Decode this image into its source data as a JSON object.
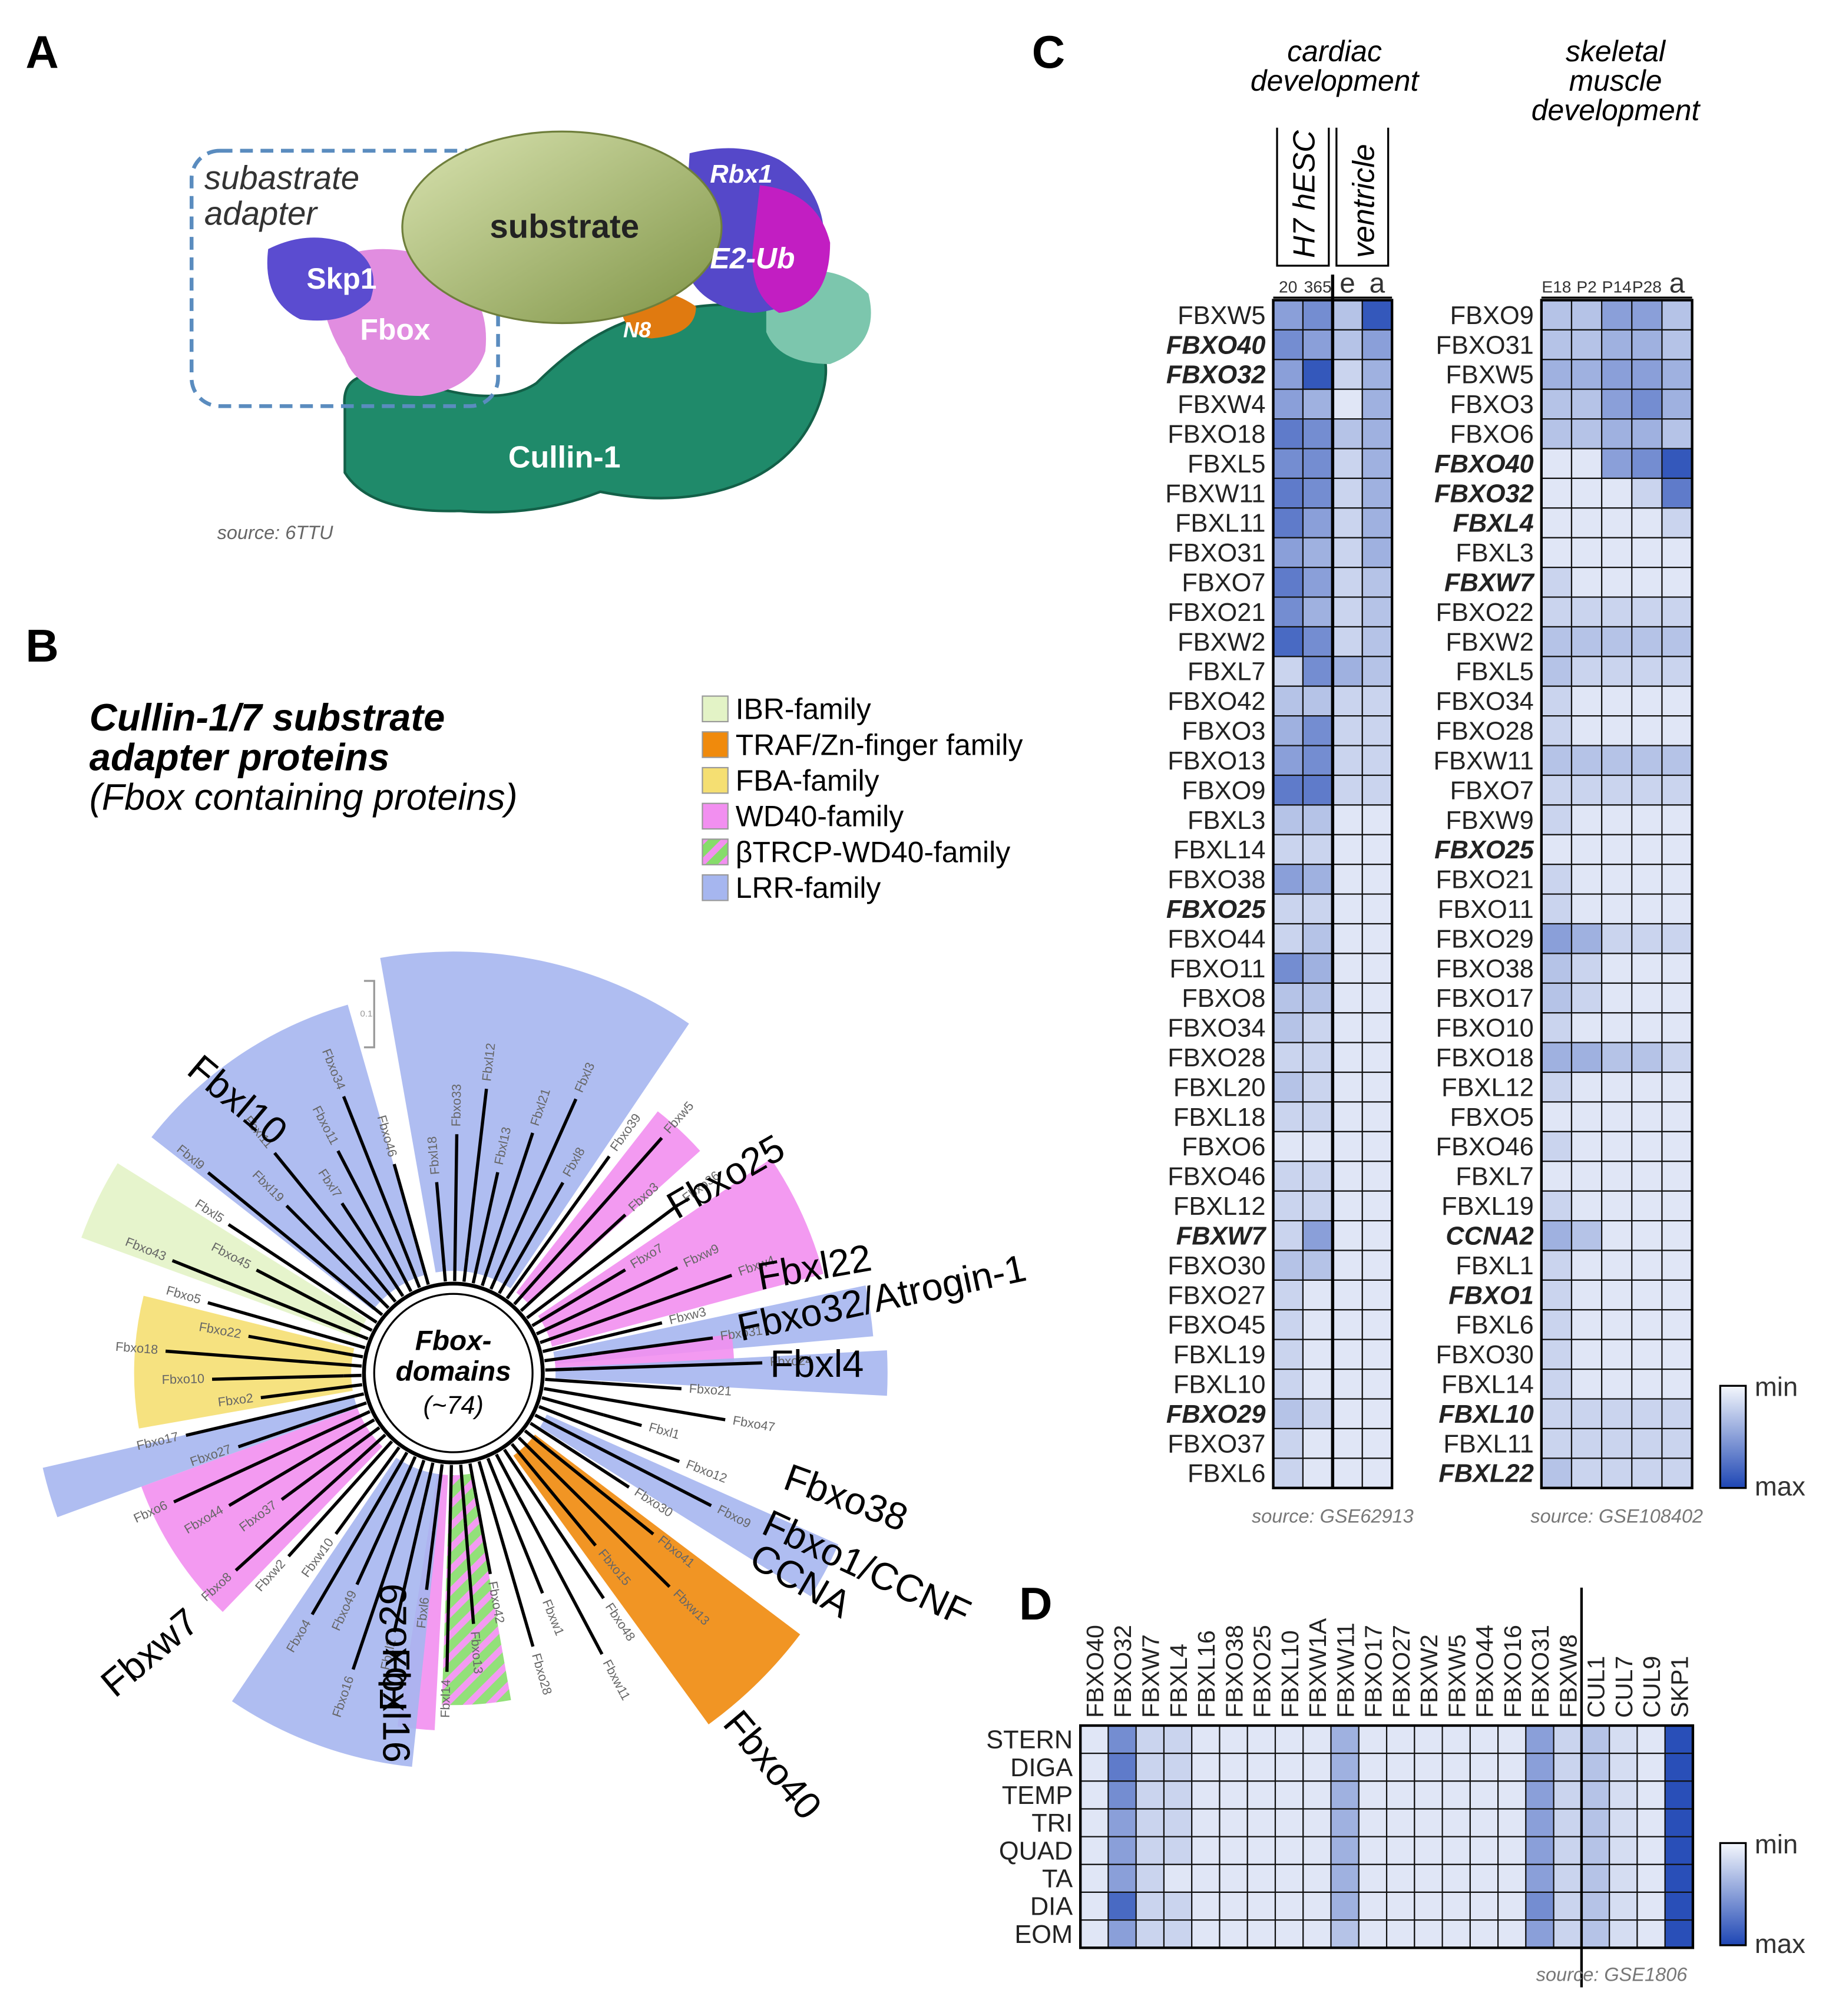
{
  "labels": [
    "A",
    "B",
    "C",
    "D"
  ],
  "panel_a": {
    "adapter_label": [
      "subastrate",
      "adapter"
    ],
    "substrate": "substrate",
    "rbx1": "Rbx1",
    "e2": "E2-Ub",
    "skp1": "Skp1",
    "fbox": "Fbox",
    "n8": "N8",
    "cullin": "Cullin-1",
    "source": "source: 6TTU"
  },
  "tree": {
    "title": [
      "Cullin-1/7 substrate",
      "adapter proteins"
    ],
    "subtitle": "(Fbox containing proteins)",
    "legend": [
      {
        "name": "IBR-family",
        "color": "#e3f3c6"
      },
      {
        "name": "TRAF/Zn-finger family",
        "color": "#f08a0c"
      },
      {
        "name": "FBA-family",
        "color": "#f5df72"
      },
      {
        "name": "WD40-family",
        "color": "#f28ff0"
      },
      {
        "name": "βTRCP-WD40-family",
        "color": "#86dc6a"
      },
      {
        "name": "LRR-family",
        "color": "#a6b6ef"
      }
    ],
    "center": [
      "Fbox-",
      "domains",
      "(~74)"
    ],
    "scale": "0.1",
    "leaves": [
      "Fbxl18",
      "Fbxo33",
      "Fbxl12",
      "Fbxl13",
      "Fbxl21",
      "Fbxl3",
      "Fbxl8",
      "Fbxo39",
      "Fbxw5",
      "Fbxo3",
      "Fbxo36",
      "Fbxo7",
      "Fbxw9",
      "Fbxw4",
      "Fbxw3",
      "Fbxo31",
      "Fbxo24",
      "Fbxo21",
      "Fbxo47",
      "Fbxl1",
      "Fbxo12",
      "Fbxo9",
      "Fbxo30",
      "Fbxo41",
      "Fbxw13",
      "Fbxo15",
      "Fbxo48",
      "Fbxw11",
      "Fbxw1",
      "Fbxo28",
      "Fbxo42",
      "Fbxo13",
      "Fbxl14",
      "Fbxl6",
      "Fbxl2",
      "Fbxo16",
      "Fbxo49",
      "Fbxo4",
      "Fbxw10",
      "Fbxw2",
      "Fbxo8",
      "Fbxo37",
      "Fbxo44",
      "Fbxo6",
      "Fbxo27",
      "Fbxo17",
      "Fbxo2",
      "Fbxo10",
      "Fbxo18",
      "Fbxo22",
      "Fbxo5",
      "Fbxo43",
      "Fbxo45",
      "Fbxl5",
      "Fbxl9",
      "Fbxl19",
      "Fbxl11",
      "Fbxl7",
      "Fbxo11",
      "Fbxo34",
      "Fbxo46"
    ],
    "highlights": [
      "Fbxl10",
      "Fbxo25",
      "Fbxl22",
      "Fbxo32/Atrogin-1",
      "Fbxl4",
      "Fbxo38",
      "Fbxo1/CCNF",
      "CCNA",
      "Fbxo40",
      "Fbxl16",
      "Fbxo29",
      "Fbxw7"
    ]
  },
  "chart_data": [
    {
      "type": "heatmap",
      "header": [
        "cardiac",
        "development"
      ],
      "column_groups": [
        {
          "label": "H7 hESC",
          "span": 2
        },
        {
          "label": "ventricle",
          "span": 2
        }
      ],
      "columns": [
        "20",
        "365",
        "e",
        "a"
      ],
      "rows": [
        "FBXW5",
        "FBXO40",
        "FBXO32",
        "FBXW4",
        "FBXO18",
        "FBXL5",
        "FBXW11",
        "FBXL11",
        "FBXO31",
        "FBXO7",
        "FBXO21",
        "FBXW2",
        "FBXL7",
        "FBXO42",
        "FBXO3",
        "FBXO13",
        "FBXO9",
        "FBXL3",
        "FBXL14",
        "FBXO38",
        "FBXO25",
        "FBXO44",
        "FBXO11",
        "FBXO8",
        "FBXO34",
        "FBXO28",
        "FBXL20",
        "FBXL18",
        "FBXO6",
        "FBXO46",
        "FBXL12",
        "FBXW7",
        "FBXO30",
        "FBXO27",
        "FBXO45",
        "FBXL19",
        "FBXL10",
        "FBXO29",
        "FBXO37",
        "FBXL6"
      ],
      "bold": [
        1,
        2,
        20,
        31,
        37
      ],
      "values": [
        [
          0.5,
          0.6,
          0.3,
          0.9
        ],
        [
          0.6,
          0.5,
          0.3,
          0.5
        ],
        [
          0.5,
          0.9,
          0.2,
          0.4
        ],
        [
          0.5,
          0.4,
          0.1,
          0.4
        ],
        [
          0.7,
          0.6,
          0.3,
          0.4
        ],
        [
          0.6,
          0.6,
          0.2,
          0.4
        ],
        [
          0.7,
          0.6,
          0.2,
          0.4
        ],
        [
          0.7,
          0.5,
          0.2,
          0.4
        ],
        [
          0.5,
          0.4,
          0.2,
          0.4
        ],
        [
          0.7,
          0.5,
          0.2,
          0.3
        ],
        [
          0.6,
          0.4,
          0.2,
          0.3
        ],
        [
          0.8,
          0.6,
          0.2,
          0.3
        ],
        [
          0.2,
          0.6,
          0.4,
          0.3
        ],
        [
          0.3,
          0.3,
          0.2,
          0.2
        ],
        [
          0.4,
          0.6,
          0.2,
          0.2
        ],
        [
          0.5,
          0.6,
          0.2,
          0.2
        ],
        [
          0.7,
          0.7,
          0.2,
          0.2
        ],
        [
          0.3,
          0.3,
          0.1,
          0.1
        ],
        [
          0.2,
          0.2,
          0.1,
          0.1
        ],
        [
          0.5,
          0.4,
          0.1,
          0.1
        ],
        [
          0.2,
          0.2,
          0.1,
          0.1
        ],
        [
          0.2,
          0.3,
          0.1,
          0.1
        ],
        [
          0.6,
          0.4,
          0.1,
          0.1
        ],
        [
          0.3,
          0.3,
          0.1,
          0.1
        ],
        [
          0.3,
          0.2,
          0.1,
          0.1
        ],
        [
          0.2,
          0.2,
          0.1,
          0.1
        ],
        [
          0.3,
          0.2,
          0.1,
          0.1
        ],
        [
          0.2,
          0.2,
          0.1,
          0.1
        ],
        [
          0.1,
          0.1,
          0.1,
          0.1
        ],
        [
          0.2,
          0.2,
          0.1,
          0.1
        ],
        [
          0.2,
          0.2,
          0.1,
          0.1
        ],
        [
          0.2,
          0.5,
          0.1,
          0.1
        ],
        [
          0.3,
          0.3,
          0.1,
          0.1
        ],
        [
          0.2,
          0.1,
          0.1,
          0.1
        ],
        [
          0.2,
          0.1,
          0.1,
          0.1
        ],
        [
          0.2,
          0.1,
          0.1,
          0.1
        ],
        [
          0.2,
          0.1,
          0.1,
          0.1
        ],
        [
          0.3,
          0.2,
          0.1,
          0.1
        ],
        [
          0.2,
          0.1,
          0.1,
          0.1
        ],
        [
          0.2,
          0.1,
          0.1,
          0.1
        ]
      ],
      "source": "source: GSE62913"
    },
    {
      "type": "heatmap",
      "header": [
        "skeletal",
        "muscle",
        "development"
      ],
      "columns": [
        "E18",
        "P2",
        "P14",
        "P28",
        "a"
      ],
      "rows": [
        "FBXO9",
        "FBXO31",
        "FBXW5",
        "FBXO3",
        "FBXO6",
        "FBXO40",
        "FBXO32",
        "FBXL4",
        "FBXL3",
        "FBXW7",
        "FBXO22",
        "FBXW2",
        "FBXL5",
        "FBXO34",
        "FBXO28",
        "FBXW11",
        "FBXO7",
        "FBXW9",
        "FBXO25",
        "FBXO21",
        "FBXO11",
        "FBXO29",
        "FBXO38",
        "FBXO17",
        "FBXO10",
        "FBXO18",
        "FBXL12",
        "FBXO5",
        "FBXO46",
        "FBXL7",
        "FBXL19",
        "CCNA2",
        "FBXL1",
        "FBXO1",
        "FBXL6",
        "FBXO30",
        "FBXL14",
        "FBXL10",
        "FBXL11",
        "FBXL22"
      ],
      "bold": [
        5,
        6,
        7,
        9,
        18,
        31,
        33,
        37,
        39
      ],
      "values": [
        [
          0.3,
          0.3,
          0.5,
          0.5,
          0.3
        ],
        [
          0.3,
          0.3,
          0.4,
          0.4,
          0.3
        ],
        [
          0.4,
          0.4,
          0.5,
          0.5,
          0.4
        ],
        [
          0.3,
          0.3,
          0.5,
          0.6,
          0.4
        ],
        [
          0.3,
          0.3,
          0.4,
          0.4,
          0.3
        ],
        [
          0.1,
          0.1,
          0.5,
          0.6,
          0.9
        ],
        [
          0.1,
          0.1,
          0.1,
          0.2,
          0.7
        ],
        [
          0.1,
          0.1,
          0.1,
          0.1,
          0.2
        ],
        [
          0.1,
          0.1,
          0.1,
          0.1,
          0.1
        ],
        [
          0.2,
          0.1,
          0.1,
          0.1,
          0.1
        ],
        [
          0.2,
          0.2,
          0.2,
          0.2,
          0.2
        ],
        [
          0.3,
          0.3,
          0.3,
          0.3,
          0.3
        ],
        [
          0.3,
          0.2,
          0.2,
          0.2,
          0.2
        ],
        [
          0.2,
          0.1,
          0.1,
          0.1,
          0.1
        ],
        [
          0.2,
          0.1,
          0.1,
          0.1,
          0.1
        ],
        [
          0.3,
          0.3,
          0.3,
          0.3,
          0.3
        ],
        [
          0.2,
          0.2,
          0.2,
          0.2,
          0.2
        ],
        [
          0.2,
          0.1,
          0.1,
          0.1,
          0.1
        ],
        [
          0.1,
          0.1,
          0.1,
          0.1,
          0.1
        ],
        [
          0.2,
          0.1,
          0.1,
          0.1,
          0.1
        ],
        [
          0.2,
          0.1,
          0.1,
          0.1,
          0.1
        ],
        [
          0.5,
          0.4,
          0.2,
          0.2,
          0.2
        ],
        [
          0.3,
          0.2,
          0.1,
          0.1,
          0.1
        ],
        [
          0.3,
          0.2,
          0.1,
          0.1,
          0.1
        ],
        [
          0.2,
          0.1,
          0.1,
          0.1,
          0.1
        ],
        [
          0.4,
          0.4,
          0.3,
          0.3,
          0.2
        ],
        [
          0.2,
          0.1,
          0.1,
          0.1,
          0.1
        ],
        [
          0.1,
          0.1,
          0.1,
          0.1,
          0.1
        ],
        [
          0.2,
          0.1,
          0.1,
          0.1,
          0.1
        ],
        [
          0.1,
          0.1,
          0.1,
          0.1,
          0.1
        ],
        [
          0.2,
          0.1,
          0.1,
          0.1,
          0.1
        ],
        [
          0.4,
          0.3,
          0.1,
          0.1,
          0.1
        ],
        [
          0.2,
          0.1,
          0.1,
          0.1,
          0.1
        ],
        [
          0.2,
          0.1,
          0.1,
          0.1,
          0.1
        ],
        [
          0.2,
          0.1,
          0.1,
          0.1,
          0.1
        ],
        [
          0.2,
          0.1,
          0.1,
          0.1,
          0.1
        ],
        [
          0.2,
          0.1,
          0.1,
          0.1,
          0.1
        ],
        [
          0.2,
          0.2,
          0.2,
          0.2,
          0.2
        ],
        [
          0.2,
          0.2,
          0.2,
          0.2,
          0.2
        ],
        [
          0.3,
          0.2,
          0.2,
          0.2,
          0.2
        ]
      ],
      "colorbar": [
        "min",
        "max"
      ],
      "source": "source: GSE108402"
    },
    {
      "type": "heatmap",
      "columns": [
        "FBXO40",
        "FBXO32",
        "FBXW7",
        "FBXL4",
        "FBXL16",
        "FBXO38",
        "FBXO25",
        "FBXL10",
        "FBXW1A",
        "FBXW11",
        "FBXO17",
        "FBXO27",
        "FBXW2",
        "FBXW5",
        "FBXO44",
        "FBXO16",
        "FBXO31",
        "FBXW8",
        "CUL1",
        "CUL7",
        "CUL9",
        "SKP1"
      ],
      "divider_after": 18,
      "rows": [
        "STERN",
        "DIGA",
        "TEMP",
        "TRI",
        "QUAD",
        "TA",
        "DIA",
        "EOM"
      ],
      "values": [
        [
          0.1,
          0.6,
          0.2,
          0.2,
          0.1,
          0.1,
          0.1,
          0.1,
          0.1,
          0.4,
          0.1,
          0.1,
          0.1,
          0.1,
          0.1,
          0.1,
          0.5,
          0.2,
          0.3,
          0.15,
          0.1,
          0.95
        ],
        [
          0.1,
          0.7,
          0.2,
          0.2,
          0.1,
          0.1,
          0.1,
          0.1,
          0.1,
          0.4,
          0.1,
          0.1,
          0.1,
          0.1,
          0.1,
          0.1,
          0.5,
          0.2,
          0.3,
          0.15,
          0.1,
          0.95
        ],
        [
          0.1,
          0.6,
          0.2,
          0.2,
          0.1,
          0.1,
          0.1,
          0.1,
          0.1,
          0.4,
          0.1,
          0.1,
          0.1,
          0.1,
          0.1,
          0.1,
          0.5,
          0.2,
          0.3,
          0.15,
          0.1,
          0.95
        ],
        [
          0.1,
          0.5,
          0.2,
          0.2,
          0.1,
          0.1,
          0.1,
          0.1,
          0.1,
          0.4,
          0.1,
          0.1,
          0.1,
          0.1,
          0.1,
          0.1,
          0.5,
          0.2,
          0.3,
          0.15,
          0.1,
          0.95
        ],
        [
          0.1,
          0.5,
          0.2,
          0.2,
          0.1,
          0.1,
          0.1,
          0.1,
          0.1,
          0.4,
          0.1,
          0.1,
          0.1,
          0.1,
          0.1,
          0.1,
          0.5,
          0.2,
          0.3,
          0.15,
          0.1,
          0.95
        ],
        [
          0.1,
          0.5,
          0.2,
          0.1,
          0.1,
          0.1,
          0.1,
          0.1,
          0.1,
          0.4,
          0.1,
          0.1,
          0.1,
          0.1,
          0.1,
          0.1,
          0.5,
          0.2,
          0.3,
          0.15,
          0.1,
          0.95
        ],
        [
          0.1,
          0.8,
          0.2,
          0.2,
          0.1,
          0.1,
          0.1,
          0.1,
          0.1,
          0.4,
          0.1,
          0.1,
          0.1,
          0.1,
          0.1,
          0.1,
          0.6,
          0.2,
          0.3,
          0.15,
          0.1,
          0.95
        ],
        [
          0.1,
          0.5,
          0.2,
          0.2,
          0.1,
          0.1,
          0.1,
          0.1,
          0.1,
          0.3,
          0.1,
          0.1,
          0.1,
          0.1,
          0.1,
          0.1,
          0.5,
          0.2,
          0.3,
          0.15,
          0.1,
          0.95
        ]
      ],
      "colorbar": [
        "min",
        "max"
      ],
      "source": "source: GSE1806"
    }
  ]
}
